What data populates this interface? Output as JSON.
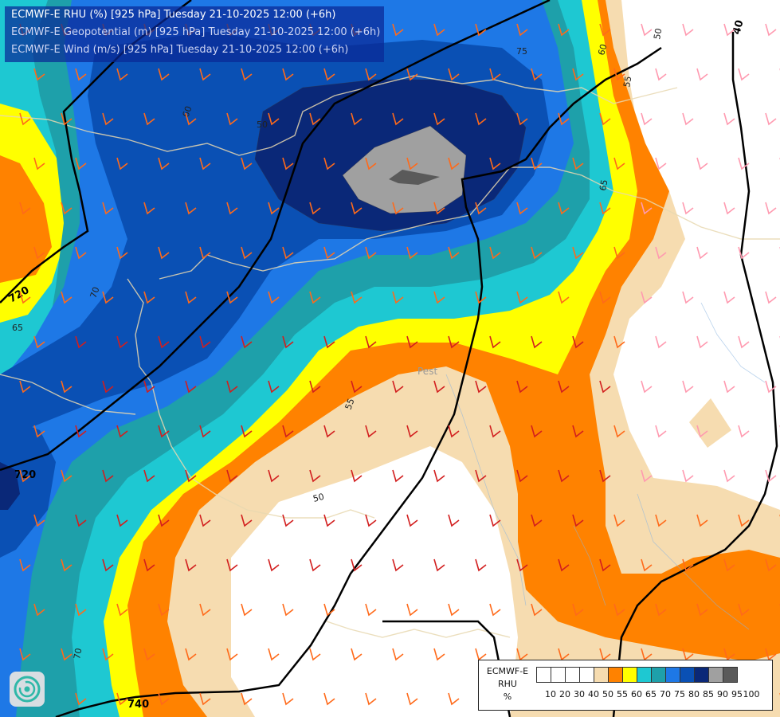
{
  "title": {
    "line1": "ECMWF-E RHU (%) [925 hPa] Tuesday 21-10-2025 12:00 (+6h)",
    "line2": "ECMWF-E Geopotential (m) [925 hPa] Tuesday 21-10-2025 12:00 (+6h)",
    "line3": "ECMWF-E Wind (m/s) [925 hPa] Tuesday 21-10-2025 12:00 (+6h)"
  },
  "legend": {
    "model": "ECMWF-E",
    "variable": "RHU",
    "unit": "%",
    "levels": [
      "10",
      "20",
      "30",
      "40",
      "50",
      "55",
      "60",
      "65",
      "70",
      "75",
      "80",
      "85",
      "90",
      "95",
      "100"
    ],
    "colors": [
      "#ffffff",
      "#ffffff",
      "#ffffff",
      "#ffffff",
      "#f6dcb0",
      "#ff8200",
      "#ffff00",
      "#1ec8d2",
      "#1ea0aa",
      "#1e78e6",
      "#0a50b4",
      "#0a2878",
      "#a0a0a0",
      "#5a5a5a"
    ]
  },
  "contour_labels": {
    "rhu": [
      "75",
      "60",
      "60",
      "55",
      "50",
      "65",
      "70",
      "65",
      "55",
      "50",
      "70",
      "50"
    ],
    "geopotential": [
      "40",
      "720",
      "740",
      "720",
      "720"
    ]
  },
  "place_labels": [
    "Pest"
  ],
  "icons": {
    "logo": "ecmwf-swirl-icon",
    "barbs": "wind-barb-icon"
  }
}
